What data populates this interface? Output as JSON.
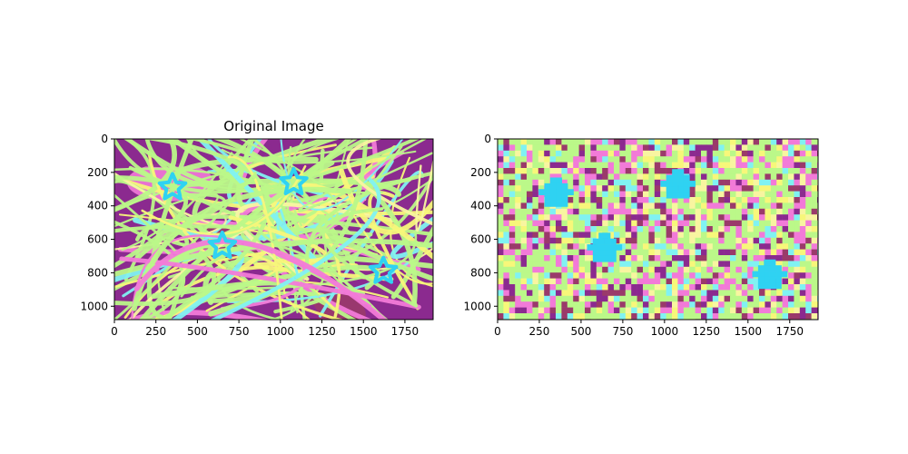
{
  "palette": {
    "purple": "#8b2a8f",
    "dark_magenta": "#9a3a6a",
    "pink": "#f27ad8",
    "yellow": "#f7f77a",
    "light_yellow": "#f8f5a0",
    "green": "#bbf889",
    "cyan": "#80f2f2",
    "star_blue": "#2fd2f2"
  },
  "chart_data": [
    {
      "type": "image",
      "title": "Original Image",
      "xlim": [
        0,
        1920
      ],
      "ylim": [
        1080,
        0
      ],
      "xticks": [
        0,
        250,
        500,
        750,
        1000,
        1250,
        1500,
        1750
      ],
      "yticks": [
        0,
        200,
        400,
        600,
        800,
        1000
      ],
      "render": "smooth",
      "stars": [
        {
          "x": 350,
          "y": 290
        },
        {
          "x": 1080,
          "y": 260
        },
        {
          "x": 650,
          "y": 640
        },
        {
          "x": 1620,
          "y": 790
        }
      ]
    },
    {
      "type": "image",
      "title": "",
      "xlim": [
        0,
        1920
      ],
      "ylim": [
        1080,
        0
      ],
      "xticks": [
        0,
        250,
        500,
        750,
        1000,
        1250,
        1500,
        1750
      ],
      "yticks": [
        0,
        200,
        400,
        600,
        800,
        1000
      ],
      "render": "pixelated",
      "stars": [
        {
          "x": 350,
          "y": 300
        },
        {
          "x": 1080,
          "y": 250
        },
        {
          "x": 640,
          "y": 630
        },
        {
          "x": 1630,
          "y": 790
        }
      ]
    }
  ]
}
